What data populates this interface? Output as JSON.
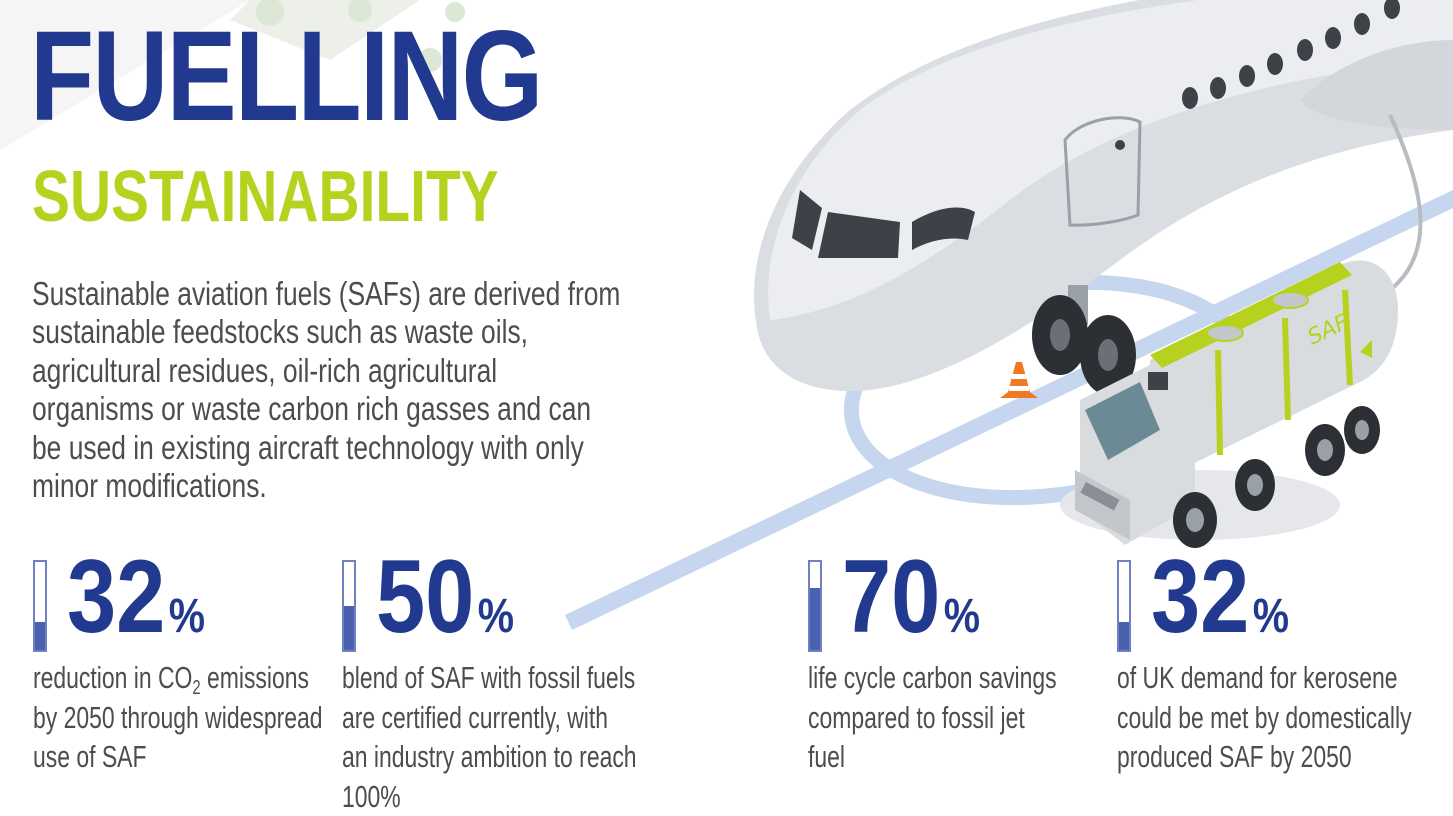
{
  "title": {
    "line1": "FUELLING",
    "line2": "SUSTAINABILITY"
  },
  "intro": "Sustainable aviation fuels (SAFs) are derived from sustainable feedstocks such as waste oils, agricultural residues, oil-rich agricultural organisms or waste carbon rich gasses and can be used in existing aircraft technology with only minor modifications.",
  "illustration": {
    "tanker_label": "SAF"
  },
  "colors": {
    "brand_blue": "#21398f",
    "brand_green": "#b7d21e",
    "text_grey": "#4d4d4d",
    "gauge_fill": "#4a61b0"
  },
  "stats": [
    {
      "value": "32",
      "unit": "%",
      "fill_percent": 32,
      "desc_pre": "reduction in CO",
      "desc_sub": "2",
      "desc_post": " emissions by 2050 through widespread use of SAF"
    },
    {
      "value": "50",
      "unit": "%",
      "fill_percent": 50,
      "desc": "blend of SAF with fossil fuels are certified currently, with an industry ambition to reach 100%"
    },
    {
      "value": "70",
      "unit": "%",
      "fill_percent": 70,
      "desc": "life cycle carbon savings compared to fossil jet fuel"
    },
    {
      "value": "32",
      "unit": "%",
      "fill_percent": 32,
      "desc": "of UK demand for kerosene could be met by domestically produced SAF by 2050"
    }
  ]
}
